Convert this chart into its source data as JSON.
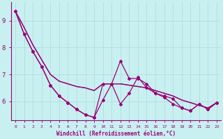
{
  "xlabel": "Windchill (Refroidissement éolien,°C)",
  "background_color": "#c8f0f0",
  "grid_color": "#b8dede",
  "line_color": "#990077",
  "x_values": [
    0,
    1,
    2,
    3,
    4,
    5,
    6,
    7,
    8,
    9,
    10,
    11,
    12,
    13,
    14,
    15,
    16,
    17,
    18,
    19,
    20,
    21,
    22,
    23
  ],
  "line1": [
    9.35,
    8.5,
    7.85,
    7.3,
    6.6,
    6.2,
    5.95,
    5.7,
    5.5,
    5.4,
    6.65,
    6.65,
    5.9,
    6.3,
    6.9,
    6.5,
    6.3,
    6.2,
    6.1,
    5.75,
    5.65,
    5.9,
    5.7,
    5.95
  ],
  "line2": [
    9.35,
    8.5,
    7.85,
    7.3,
    6.6,
    6.2,
    5.95,
    5.7,
    5.5,
    5.4,
    6.05,
    6.65,
    7.5,
    6.85,
    6.85,
    6.65,
    6.3,
    6.15,
    5.9,
    5.75,
    5.65,
    5.9,
    5.7,
    5.95
  ],
  "trend1": [
    9.35,
    8.75,
    8.1,
    7.55,
    7.0,
    6.75,
    6.65,
    6.55,
    6.5,
    6.4,
    6.65,
    6.65,
    6.65,
    6.6,
    6.55,
    6.5,
    6.4,
    6.3,
    6.2,
    6.05,
    5.95,
    5.85,
    5.75,
    5.95
  ],
  "trend2": [
    9.35,
    8.75,
    8.1,
    7.55,
    7.0,
    6.75,
    6.65,
    6.55,
    6.5,
    6.4,
    6.65,
    6.65,
    6.65,
    6.6,
    6.55,
    6.5,
    6.4,
    6.3,
    6.2,
    6.05,
    5.95,
    5.85,
    5.75,
    5.95
  ],
  "ylim": [
    5.3,
    9.7
  ],
  "yticks": [
    6,
    7,
    8,
    9
  ]
}
